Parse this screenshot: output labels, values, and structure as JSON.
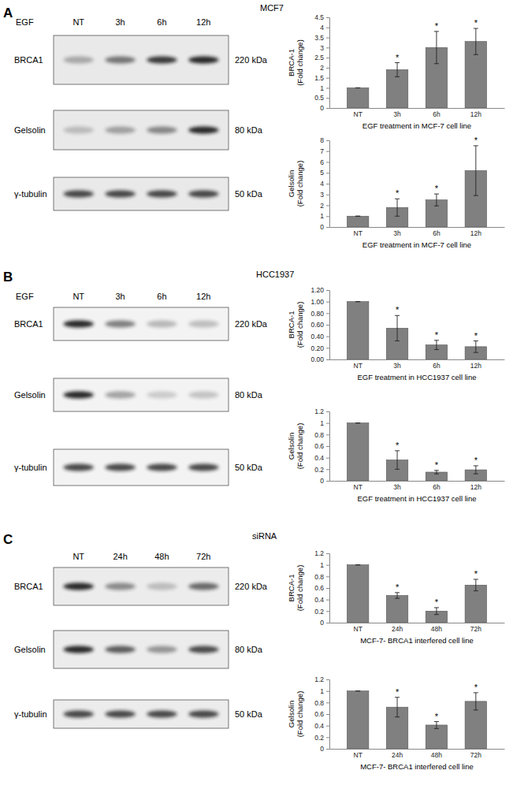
{
  "chart_data": [
    {
      "type": "bar",
      "ylabel": "BRCA-1\n(Fold change)",
      "xlabel": "EGF treatment in MCF-7 cell line",
      "categories": [
        "NT",
        "3h",
        "6h",
        "12h"
      ],
      "values": [
        1,
        1.9,
        3.0,
        3.3
      ],
      "errors": [
        0,
        0.35,
        0.8,
        0.65
      ],
      "significance": [
        null,
        "*",
        "*",
        "*"
      ],
      "color": "#808080",
      "ylim": [
        0,
        4.5
      ],
      "yticks": [
        0,
        0.5,
        1,
        1.5,
        2,
        2.5,
        3,
        3.5,
        4,
        4.5
      ]
    },
    {
      "type": "bar",
      "ylabel": "Gelsolin\n(Fold change)",
      "xlabel": "EGF treatment in MCF-7 cell line",
      "categories": [
        "NT",
        "3h",
        "6h",
        "12h"
      ],
      "values": [
        1,
        1.8,
        2.5,
        5.2
      ],
      "errors": [
        0,
        0.8,
        0.55,
        2.3
      ],
      "significance": [
        null,
        "*",
        "*",
        "*"
      ],
      "color": "#808080",
      "ylim": [
        0,
        8
      ],
      "yticks": [
        0,
        1,
        2,
        3,
        4,
        5,
        6,
        7,
        8
      ]
    },
    {
      "type": "bar",
      "ylabel": "BRCA-1\n(Fold change)",
      "xlabel": "EGF treatment in HCC1937 cell line",
      "categories": [
        "NT",
        "3h",
        "6h",
        "12h"
      ],
      "values": [
        1,
        0.54,
        0.25,
        0.22
      ],
      "errors": [
        0,
        0.22,
        0.08,
        0.1
      ],
      "significance": [
        null,
        "*",
        "*",
        "*"
      ],
      "color": "#808080",
      "ylim": [
        0,
        1.2
      ],
      "yticks": [
        {
          "value": 0,
          "label": "0.00"
        },
        {
          "value": 0.2,
          "label": "0.20"
        },
        {
          "value": 0.4,
          "label": "0.40"
        },
        {
          "value": 0.6,
          "label": "0.60"
        },
        {
          "value": 0.8,
          "label": "0.80"
        },
        {
          "value": 1,
          "label": "1.00"
        },
        {
          "value": 1.2,
          "label": "1.20"
        }
      ]
    },
    {
      "type": "bar",
      "ylabel": "Gelsolin\n(Fold change)",
      "xlabel": "EGF treatment in HCC1937 cell line",
      "categories": [
        "NT",
        "3h",
        "6h",
        "12h"
      ],
      "values": [
        1,
        0.36,
        0.15,
        0.19
      ],
      "errors": [
        0,
        0.16,
        0.03,
        0.07
      ],
      "significance": [
        null,
        "*",
        "*",
        "*"
      ],
      "color": "#808080",
      "ylim": [
        0,
        1.2
      ],
      "yticks": [
        0,
        0.2,
        0.4,
        0.6,
        0.8,
        1,
        1.2
      ]
    },
    {
      "type": "bar",
      "ylabel": "BRCA-1\n(Fold change)",
      "xlabel": "MCF-7- BRCA1 interfered cell line",
      "categories": [
        "NT",
        "24h",
        "48h",
        "72h"
      ],
      "values": [
        1,
        0.47,
        0.2,
        0.65
      ],
      "errors": [
        0,
        0.05,
        0.06,
        0.1
      ],
      "significance": [
        null,
        "*",
        "*",
        "*"
      ],
      "color": "#808080",
      "ylim": [
        0,
        1.2
      ],
      "yticks": [
        0,
        0.2,
        0.4,
        0.6,
        0.8,
        1,
        1.2
      ]
    },
    {
      "type": "bar",
      "ylabel": "Gelsolin\n(Fold change)",
      "xlabel": "MCF-7- BRCA1 interfered cell line",
      "categories": [
        "NT",
        "24h",
        "48h",
        "72h"
      ],
      "values": [
        1,
        0.72,
        0.41,
        0.82
      ],
      "errors": [
        0,
        0.17,
        0.06,
        0.15
      ],
      "significance": [
        null,
        "*",
        "*",
        "*"
      ],
      "color": "#808080",
      "ylim": [
        0,
        1.2
      ],
      "yticks": [
        0,
        0.2,
        0.4,
        0.6,
        0.8,
        1,
        1.2
      ]
    }
  ],
  "panels": [
    {
      "letter": "A",
      "title": "MCF7",
      "treatment": "EGF",
      "lanes": [
        "NT",
        "3h",
        "6h",
        "12h"
      ],
      "blots": [
        {
          "protein": "BRCA1",
          "size": "220 kDa"
        },
        {
          "protein": "Gelsolin",
          "size": "80 kDa"
        },
        {
          "protein": "γ-tubulin",
          "size": "50 kDa"
        }
      ]
    },
    {
      "letter": "B",
      "title": "HCC1937",
      "treatment": "EGF",
      "lanes": [
        "NT",
        "3h",
        "6h",
        "12h"
      ],
      "blots": [
        {
          "protein": "BRCA1",
          "size": "220 kDa"
        },
        {
          "protein": "Gelsolin",
          "size": "80 kDa"
        },
        {
          "protein": "γ-tubulin",
          "size": "50 kDa"
        }
      ]
    },
    {
      "letter": "C",
      "title": "siRNA",
      "lanes": [
        "NT",
        "24h",
        "48h",
        "72h"
      ],
      "blots": [
        {
          "protein": "BRCA1",
          "size": "220 kDa"
        },
        {
          "protein": "Gelsolin",
          "size": "80 kDa"
        },
        {
          "protein": "γ-tubulin",
          "size": "50 kDa"
        }
      ]
    }
  ]
}
